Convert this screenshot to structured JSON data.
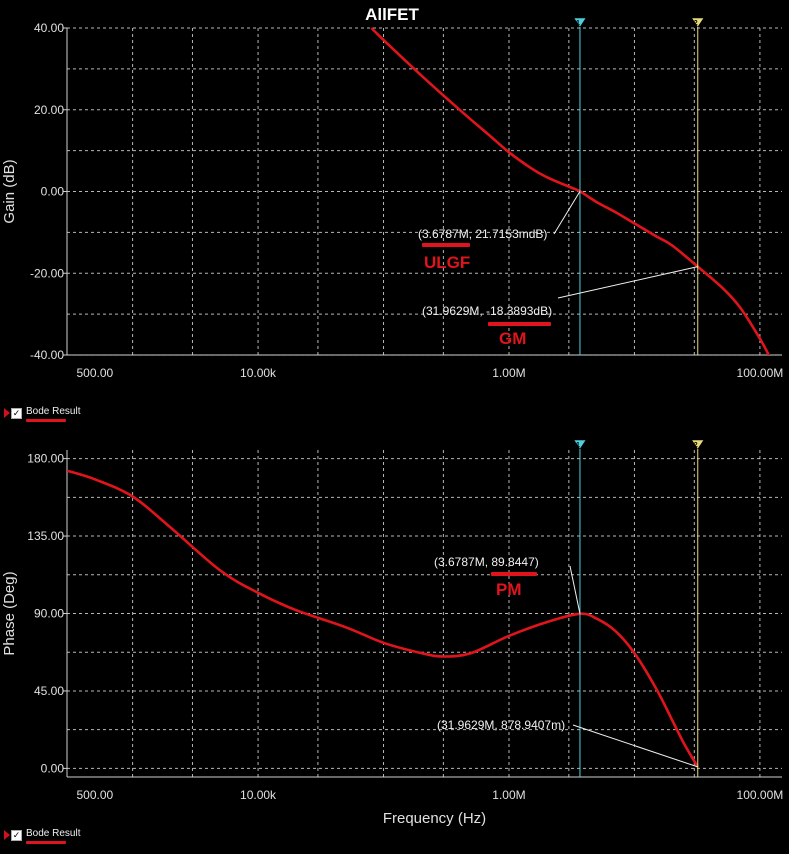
{
  "chart_data": [
    {
      "type": "line",
      "title": "AllFET",
      "xlabel": "",
      "ylabel": "Gain (dB)",
      "xscale": "log",
      "xlim": [
        300,
        150000000
      ],
      "ylim": [
        -40,
        40
      ],
      "x_ticks": [
        {
          "value": 500,
          "label": "500.00"
        },
        {
          "value": 10000,
          "label": "10.00k"
        },
        {
          "value": 1000000,
          "label": "1.00M"
        },
        {
          "value": 100000000,
          "label": "100.00M"
        }
      ],
      "y_ticks": [
        {
          "value": 40,
          "label": "40.00"
        },
        {
          "value": 20,
          "label": "20.00"
        },
        {
          "value": 0,
          "label": "0.00"
        },
        {
          "value": -20,
          "label": "-20.00"
        },
        {
          "value": -40,
          "label": "-40.00"
        }
      ],
      "grid": true,
      "series": [
        {
          "name": "Bode Result",
          "color": "#e0141c",
          "x": [
            80000,
            100000,
            200000,
            400000,
            700000,
            1000000,
            1500000,
            2000000,
            3000000,
            3678700,
            5000000,
            7000000,
            10000000,
            15000000,
            20000000,
            31962900,
            50000000,
            70000000,
            100000000,
            120000000
          ],
          "y": [
            40,
            37.1,
            28.4,
            20.1,
            13.7,
            9.6,
            5.7,
            3.5,
            1.2,
            0.02,
            -2.6,
            -5.0,
            -7.8,
            -11.0,
            -13.2,
            -18.39,
            -23.5,
            -28.5,
            -36.0,
            -40.5
          ]
        }
      ],
      "cursors": [
        {
          "x": 3678700,
          "color": "#4fd0e0",
          "label": "(3.6787M, 21.7153mdB)",
          "point_y": 0.02
        },
        {
          "x": 31962900,
          "color": "#e8dc7a",
          "label": "(31.9629M, -18.3893dB)",
          "point_y": -18.39
        }
      ],
      "annotations": [
        "ULGF",
        "GM"
      ],
      "legend": "Bode Result"
    },
    {
      "type": "line",
      "title": "",
      "xlabel": "Frequency (Hz)",
      "ylabel": "Phase (Deg)",
      "xscale": "log",
      "xlim": [
        300,
        150000000
      ],
      "ylim": [
        -5,
        185
      ],
      "x_ticks": [
        {
          "value": 500,
          "label": "500.00"
        },
        {
          "value": 10000,
          "label": "10.00k"
        },
        {
          "value": 1000000,
          "label": "1.00M"
        },
        {
          "value": 100000000,
          "label": "100.00M"
        }
      ],
      "y_ticks": [
        {
          "value": 180,
          "label": "180.00"
        },
        {
          "value": 135,
          "label": "135.00"
        },
        {
          "value": 90,
          "label": "90.00"
        },
        {
          "value": 45,
          "label": "45.00"
        },
        {
          "value": 0,
          "label": "0.00"
        }
      ],
      "grid": true,
      "series": [
        {
          "name": "Bode Result",
          "color": "#e0141c",
          "x": [
            300,
            500,
            1000,
            2000,
            5000,
            10000,
            20000,
            50000,
            100000,
            200000,
            300000,
            500000,
            1000000,
            2000000,
            3678700,
            5000000,
            7000000,
            10000000,
            15000000,
            20000000,
            25000000,
            31962900
          ],
          "y": [
            173,
            168,
            158,
            140,
            115,
            102,
            92,
            82,
            73,
            67,
            65,
            67,
            77,
            85,
            89.84,
            87,
            80,
            67,
            46,
            28,
            14,
            0.88
          ]
        }
      ],
      "cursors": [
        {
          "x": 3678700,
          "color": "#4fd0e0",
          "label": "(3.6787M, 89.8447)",
          "point_y": 89.84
        },
        {
          "x": 31962900,
          "color": "#e8dc7a",
          "label": "(31.9629M, 878.9407m)",
          "point_y": 0.88
        }
      ],
      "annotations": [
        "PM"
      ],
      "legend": "Bode Result"
    }
  ],
  "legends": [
    {
      "label": "Bode Result",
      "checked": "✓"
    },
    {
      "label": "Bode Result",
      "checked": "✓"
    }
  ]
}
